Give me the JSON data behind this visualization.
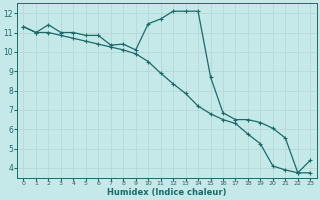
{
  "xlabel": "Humidex (Indice chaleur)",
  "bg_color": "#c5e8e8",
  "line_color": "#1a6b6b",
  "grid_color": "#b8d8d8",
  "xlim": [
    -0.5,
    23.5
  ],
  "ylim": [
    3.5,
    12.5
  ],
  "xticks": [
    0,
    1,
    2,
    3,
    4,
    5,
    6,
    7,
    8,
    9,
    10,
    11,
    12,
    13,
    14,
    15,
    16,
    17,
    18,
    19,
    20,
    21,
    22,
    23
  ],
  "yticks": [
    4,
    5,
    6,
    7,
    8,
    9,
    10,
    11,
    12
  ],
  "curve_x": [
    0,
    1,
    2,
    3,
    4,
    5,
    6,
    7,
    8,
    9,
    10,
    11,
    12,
    13,
    14,
    15,
    16,
    17,
    18,
    19,
    20,
    21,
    22,
    23
  ],
  "curve_y": [
    11.3,
    11.0,
    11.4,
    11.0,
    11.0,
    10.85,
    10.85,
    10.35,
    10.4,
    10.1,
    11.45,
    11.7,
    12.1,
    12.1,
    12.1,
    8.7,
    6.85,
    6.5,
    6.5,
    6.35,
    6.05,
    5.55,
    3.75,
    3.75
  ],
  "line_x": [
    0,
    1,
    2,
    3,
    4,
    5,
    6,
    7,
    8,
    9,
    10,
    11,
    12,
    13,
    14,
    15,
    16,
    17,
    18,
    19,
    20,
    21,
    22,
    23
  ],
  "line_y": [
    11.3,
    11.0,
    11.0,
    10.85,
    10.7,
    10.55,
    10.4,
    10.25,
    10.1,
    9.9,
    9.5,
    8.9,
    8.35,
    7.85,
    7.2,
    6.8,
    6.5,
    6.3,
    5.75,
    5.25,
    4.1,
    3.9,
    3.75,
    4.4
  ]
}
